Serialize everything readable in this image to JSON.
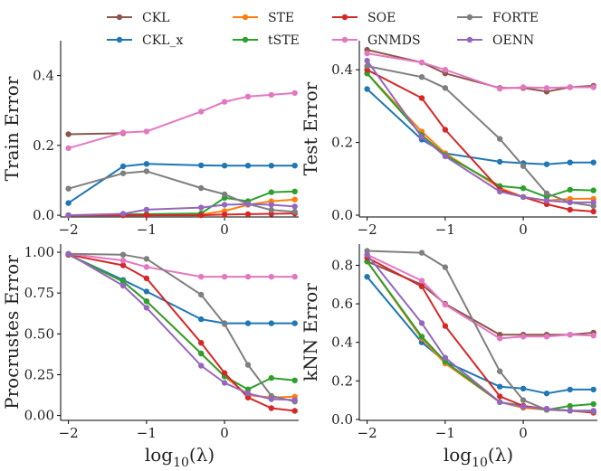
{
  "legend": {
    "entries": [
      {
        "name": "CKL",
        "color": "#8c564b"
      },
      {
        "name": "STE",
        "color": "#ff7f0e"
      },
      {
        "name": "SOE",
        "color": "#d62728"
      },
      {
        "name": "FORTE",
        "color": "#7f7f7f"
      },
      {
        "name": "CKL_x",
        "color": "#1f77b4"
      },
      {
        "name": "tSTE",
        "color": "#2ca02c"
      },
      {
        "name": "GNMDS",
        "color": "#e377c2"
      },
      {
        "name": "OENN",
        "color": "#9467bd"
      }
    ]
  },
  "chart_data": [
    {
      "id": "train",
      "type": "line",
      "title": "",
      "xlabel": "log10(λ)",
      "ylabel": "Train Error",
      "xlim": [
        -2.1,
        0.95
      ],
      "ylim": [
        -0.005,
        0.5
      ],
      "xticks": [
        -2,
        -1,
        0
      ],
      "xtick_labels": [
        "−2",
        "−1",
        "0"
      ],
      "yticks": [
        0.0,
        0.2,
        0.4
      ],
      "ytick_labels": [
        "0.0",
        "0.2",
        "0.4"
      ],
      "x": [
        -2,
        -1.3,
        -1,
        -0.3,
        0,
        0.3,
        0.6,
        0.9
      ],
      "series": [
        {
          "name": "CKL",
          "values": [
            0.232,
            0.235,
            null,
            null,
            null,
            null,
            null,
            null
          ]
        },
        {
          "name": "CKL_x",
          "values": [
            0.035,
            0.14,
            0.147,
            0.143,
            0.142,
            0.142,
            0.142,
            0.142
          ]
        },
        {
          "name": "STE",
          "values": [
            0.0,
            0.0,
            0.0,
            0.002,
            0.012,
            0.03,
            0.04,
            0.045
          ]
        },
        {
          "name": "tSTE",
          "values": [
            0.0,
            0.002,
            0.003,
            0.005,
            0.05,
            0.04,
            0.066,
            0.068
          ]
        },
        {
          "name": "SOE",
          "values": [
            0.0,
            0.0,
            0.0,
            0.0,
            0.002,
            0.003,
            0.004,
            0.005
          ]
        },
        {
          "name": "GNMDS",
          "values": [
            0.192,
            0.237,
            0.24,
            0.297,
            0.325,
            0.34,
            0.345,
            0.35
          ]
        },
        {
          "name": "FORTE",
          "values": [
            0.076,
            0.12,
            0.126,
            0.078,
            0.06,
            0.032,
            0.015,
            0.01
          ]
        },
        {
          "name": "OENN",
          "values": [
            0.0,
            0.004,
            0.016,
            0.022,
            0.03,
            0.032,
            0.03,
            0.025
          ]
        }
      ]
    },
    {
      "id": "test",
      "type": "line",
      "title": "",
      "xlabel": "log10(λ)",
      "ylabel": "Test Error",
      "xlim": [
        -2.1,
        0.95
      ],
      "ylim": [
        -0.005,
        0.48
      ],
      "xticks": [
        -2,
        -1,
        0
      ],
      "xtick_labels": [
        "−2",
        "−1",
        "0"
      ],
      "yticks": [
        0.0,
        0.2,
        0.4
      ],
      "ytick_labels": [
        "0.0",
        "0.2",
        "0.4"
      ],
      "x": [
        -2,
        -1.3,
        -1,
        -0.3,
        0,
        0.3,
        0.6,
        0.9
      ],
      "series": [
        {
          "name": "CKL",
          "values": [
            0.455,
            0.42,
            0.39,
            0.35,
            0.35,
            0.34,
            0.352,
            0.356
          ]
        },
        {
          "name": "CKL_x",
          "values": [
            0.347,
            0.208,
            0.17,
            0.147,
            0.143,
            0.14,
            0.145,
            0.145
          ]
        },
        {
          "name": "STE",
          "values": [
            0.39,
            0.23,
            0.17,
            0.075,
            0.05,
            0.04,
            0.045,
            0.045
          ]
        },
        {
          "name": "tSTE",
          "values": [
            0.39,
            0.22,
            0.165,
            0.08,
            0.074,
            0.05,
            0.07,
            0.068
          ]
        },
        {
          "name": "SOE",
          "values": [
            0.4,
            0.322,
            0.235,
            0.07,
            0.05,
            0.03,
            0.015,
            0.01
          ]
        },
        {
          "name": "GNMDS",
          "values": [
            0.445,
            0.42,
            0.4,
            0.348,
            0.352,
            0.35,
            0.352,
            0.352
          ]
        },
        {
          "name": "FORTE",
          "values": [
            0.41,
            0.38,
            0.35,
            0.21,
            0.135,
            0.06,
            0.035,
            0.025
          ]
        },
        {
          "name": "OENN",
          "values": [
            0.425,
            0.215,
            0.162,
            0.065,
            0.05,
            0.04,
            0.035,
            0.035
          ]
        }
      ]
    },
    {
      "id": "procrustes",
      "type": "line",
      "title": "",
      "xlabel": "log10(λ)",
      "ylabel": "Procrustes Error",
      "xlim": [
        -2.1,
        0.95
      ],
      "ylim": [
        -0.03,
        1.05
      ],
      "xticks": [
        -2,
        -1,
        0
      ],
      "xtick_labels": [
        "−2",
        "−1",
        "0"
      ],
      "yticks": [
        0.0,
        0.25,
        0.5,
        0.75,
        1.0
      ],
      "ytick_labels": [
        "0.00",
        "0.25",
        "0.50",
        "0.75",
        "1.00"
      ],
      "x": [
        -2,
        -1.3,
        -1,
        -0.3,
        0,
        0.3,
        0.6,
        0.9
      ],
      "series": [
        {
          "name": "CKL",
          "values": [
            0.985,
            null,
            null,
            null,
            null,
            null,
            null,
            null
          ]
        },
        {
          "name": "CKL_x",
          "values": [
            0.985,
            0.83,
            0.76,
            0.59,
            0.565,
            0.565,
            0.565,
            0.565
          ]
        },
        {
          "name": "STE",
          "values": [
            0.985,
            0.82,
            0.7,
            0.38,
            0.24,
            0.125,
            0.11,
            0.115
          ]
        },
        {
          "name": "tSTE",
          "values": [
            0.985,
            0.82,
            0.7,
            0.38,
            0.24,
            0.16,
            0.23,
            0.215
          ]
        },
        {
          "name": "SOE",
          "values": [
            0.985,
            0.92,
            0.84,
            0.445,
            0.26,
            0.11,
            0.045,
            0.028
          ]
        },
        {
          "name": "GNMDS",
          "values": [
            0.99,
            0.95,
            0.91,
            0.85,
            0.85,
            0.85,
            0.85,
            0.85
          ]
        },
        {
          "name": "FORTE",
          "values": [
            0.99,
            0.985,
            0.96,
            0.74,
            0.56,
            0.31,
            0.12,
            0.085
          ]
        },
        {
          "name": "OENN",
          "values": [
            0.99,
            0.795,
            0.66,
            0.305,
            0.2,
            0.135,
            0.1,
            0.095
          ]
        }
      ]
    },
    {
      "id": "knn",
      "type": "line",
      "title": "",
      "xlabel": "log10(λ)",
      "ylabel": "kNN Error",
      "xlim": [
        -2.1,
        0.95
      ],
      "ylim": [
        -0.005,
        0.91
      ],
      "xticks": [
        -2,
        -1,
        0
      ],
      "xtick_labels": [
        "−2",
        "−1",
        "0"
      ],
      "yticks": [
        0.0,
        0.2,
        0.4,
        0.6,
        0.8
      ],
      "ytick_labels": [
        "0.0",
        "0.2",
        "0.4",
        "0.6",
        "0.8"
      ],
      "x": [
        -2,
        -1.3,
        -1,
        -0.3,
        0,
        0.3,
        0.6,
        0.9
      ],
      "series": [
        {
          "name": "CKL",
          "values": [
            0.82,
            0.7,
            0.6,
            0.44,
            0.44,
            0.44,
            0.44,
            0.45
          ]
        },
        {
          "name": "CKL_x",
          "values": [
            0.74,
            0.4,
            0.3,
            0.17,
            0.16,
            0.135,
            0.155,
            0.155
          ]
        },
        {
          "name": "STE",
          "values": [
            0.82,
            0.42,
            0.29,
            0.09,
            0.06,
            0.05,
            0.045,
            0.04
          ]
        },
        {
          "name": "tSTE",
          "values": [
            0.82,
            0.43,
            0.3,
            0.09,
            0.07,
            0.05,
            0.07,
            0.08
          ]
        },
        {
          "name": "SOE",
          "values": [
            0.84,
            0.69,
            0.485,
            0.12,
            0.07,
            0.055,
            0.045,
            0.035
          ]
        },
        {
          "name": "GNMDS",
          "values": [
            0.855,
            0.72,
            0.595,
            0.42,
            0.43,
            0.43,
            0.44,
            0.435
          ]
        },
        {
          "name": "FORTE",
          "values": [
            0.875,
            0.865,
            0.79,
            0.25,
            0.1,
            0.05,
            0.045,
            0.04
          ]
        },
        {
          "name": "OENN",
          "values": [
            0.855,
            0.5,
            0.32,
            0.09,
            0.065,
            0.055,
            0.045,
            0.045
          ]
        }
      ]
    }
  ]
}
